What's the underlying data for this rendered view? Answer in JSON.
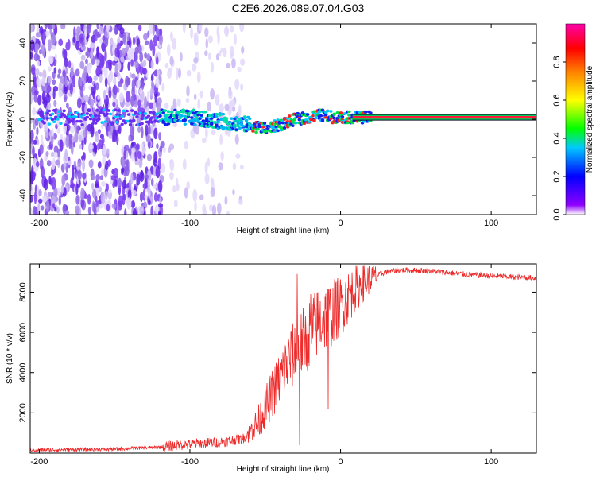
{
  "title": "C2E6.2026.089.07.04.G03",
  "colormap_colors": [
    "#ffffff",
    "#8f00ff",
    "#0000ff",
    "#00c8ff",
    "#00ff00",
    "#ffff00",
    "#ff7f00",
    "#ff0000",
    "#ff00aa"
  ],
  "line_color": "#ee2b2b",
  "chart_data": [
    {
      "type": "heatmap",
      "name": "spectrogram",
      "xlabel": "Height of straight line (km)",
      "ylabel": "Frequency (Hz)",
      "xlim": [
        -206,
        130
      ],
      "ylim": [
        -50,
        50
      ],
      "xticks": [
        -200,
        -100,
        0,
        100
      ],
      "xtick_labels": [
        "-200",
        "-100",
        "0",
        "100"
      ],
      "yticks": [
        -40,
        -20,
        0,
        20,
        40
      ],
      "ytick_labels": [
        "-40",
        "-20",
        "0",
        "20",
        "40"
      ],
      "colorbar": {
        "label": "Normalized spectral amplitude",
        "range": [
          0,
          1
        ],
        "ticks": [
          0.0,
          0.2,
          0.4,
          0.6,
          0.8
        ],
        "tick_labels": [
          "0.0",
          "0.2",
          "0.4",
          "0.6",
          "0.8"
        ]
      },
      "carrier_trace": {
        "x": [
          -130,
          -115,
          -100,
          -90,
          -80,
          -70,
          -60,
          -55,
          -50,
          -45,
          -40,
          -30,
          -20,
          -15,
          -10,
          -5,
          0,
          10,
          20,
          130
        ],
        "y": [
          1,
          1,
          1,
          0,
          -1,
          -2,
          -3,
          -4,
          -5,
          -4,
          -3,
          0,
          1,
          2,
          2,
          1,
          1,
          1,
          1,
          1
        ]
      },
      "noise_region_x": [
        -206,
        -65
      ]
    },
    {
      "type": "line",
      "name": "snr",
      "xlabel": "Height of straight line (km)",
      "ylabel": "SNR (10 * v/v)",
      "xlim": [
        -206,
        130
      ],
      "ylim": [
        0,
        9400
      ],
      "xticks": [
        -200,
        -100,
        0,
        100
      ],
      "xtick_labels": [
        "-200",
        "-100",
        "0",
        "100"
      ],
      "yticks": [
        2000,
        4000,
        6000,
        8000
      ],
      "ytick_labels": [
        "2000",
        "4000",
        "6000",
        "8000"
      ],
      "envelope": {
        "x": [
          -206,
          -150,
          -120,
          -100,
          -80,
          -65,
          -55,
          -45,
          -35,
          -25,
          -15,
          -5,
          0,
          10,
          20,
          30,
          40,
          60,
          80,
          100,
          130
        ],
        "y": [
          150,
          200,
          300,
          450,
          550,
          700,
          1500,
          3000,
          4500,
          5500,
          6500,
          7000,
          7300,
          8200,
          8700,
          9000,
          9100,
          9050,
          8900,
          8800,
          8700
        ]
      },
      "spikes": [
        {
          "x": -29,
          "y": 8900
        },
        {
          "x": -27,
          "y": 400
        },
        {
          "x": -20,
          "y": 7900
        },
        {
          "x": -8,
          "y": 2200
        }
      ]
    }
  ]
}
